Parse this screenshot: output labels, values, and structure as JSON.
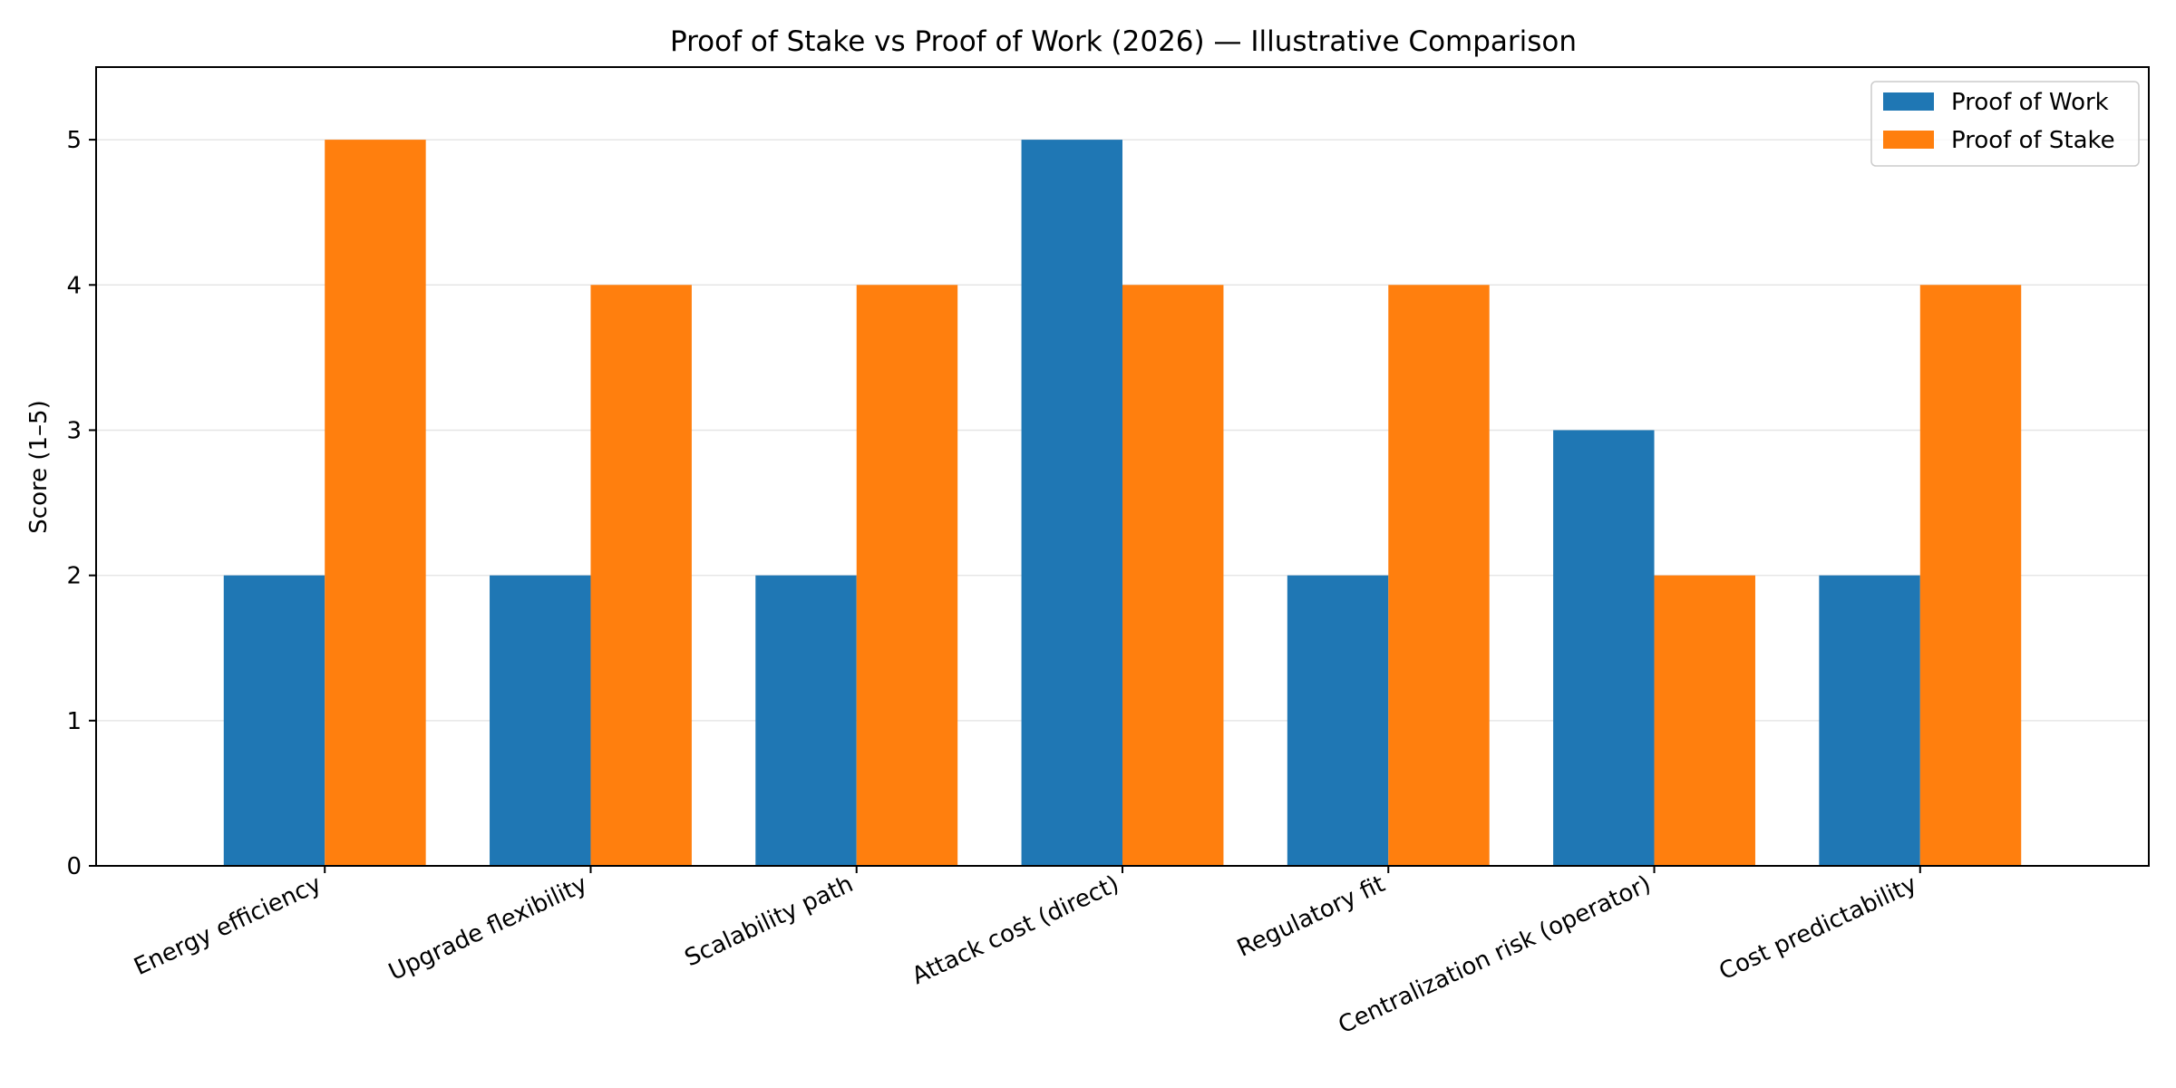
{
  "chart_data": {
    "type": "bar",
    "title": "Proof of Stake vs Proof of Work (2026) — Illustrative Comparison",
    "xlabel": "",
    "ylabel": "Score (1–5)",
    "ylim": [
      0,
      5.5
    ],
    "yticks": [
      0,
      1,
      2,
      3,
      4,
      5
    ],
    "grid": "y",
    "legend_position": "top-right",
    "categories": [
      "Energy efficiency",
      "Upgrade flexibility",
      "Scalability path",
      "Attack cost (direct)",
      "Regulatory fit",
      "Centralization risk (operator)",
      "Cost predictability"
    ],
    "series": [
      {
        "name": "Proof of Work",
        "color": "#1f77b4",
        "values": [
          2,
          2,
          2,
          5,
          2,
          3,
          2
        ]
      },
      {
        "name": "Proof of Stake",
        "color": "#ff7f0e",
        "values": [
          5,
          4,
          4,
          4,
          4,
          2,
          4
        ]
      }
    ]
  }
}
